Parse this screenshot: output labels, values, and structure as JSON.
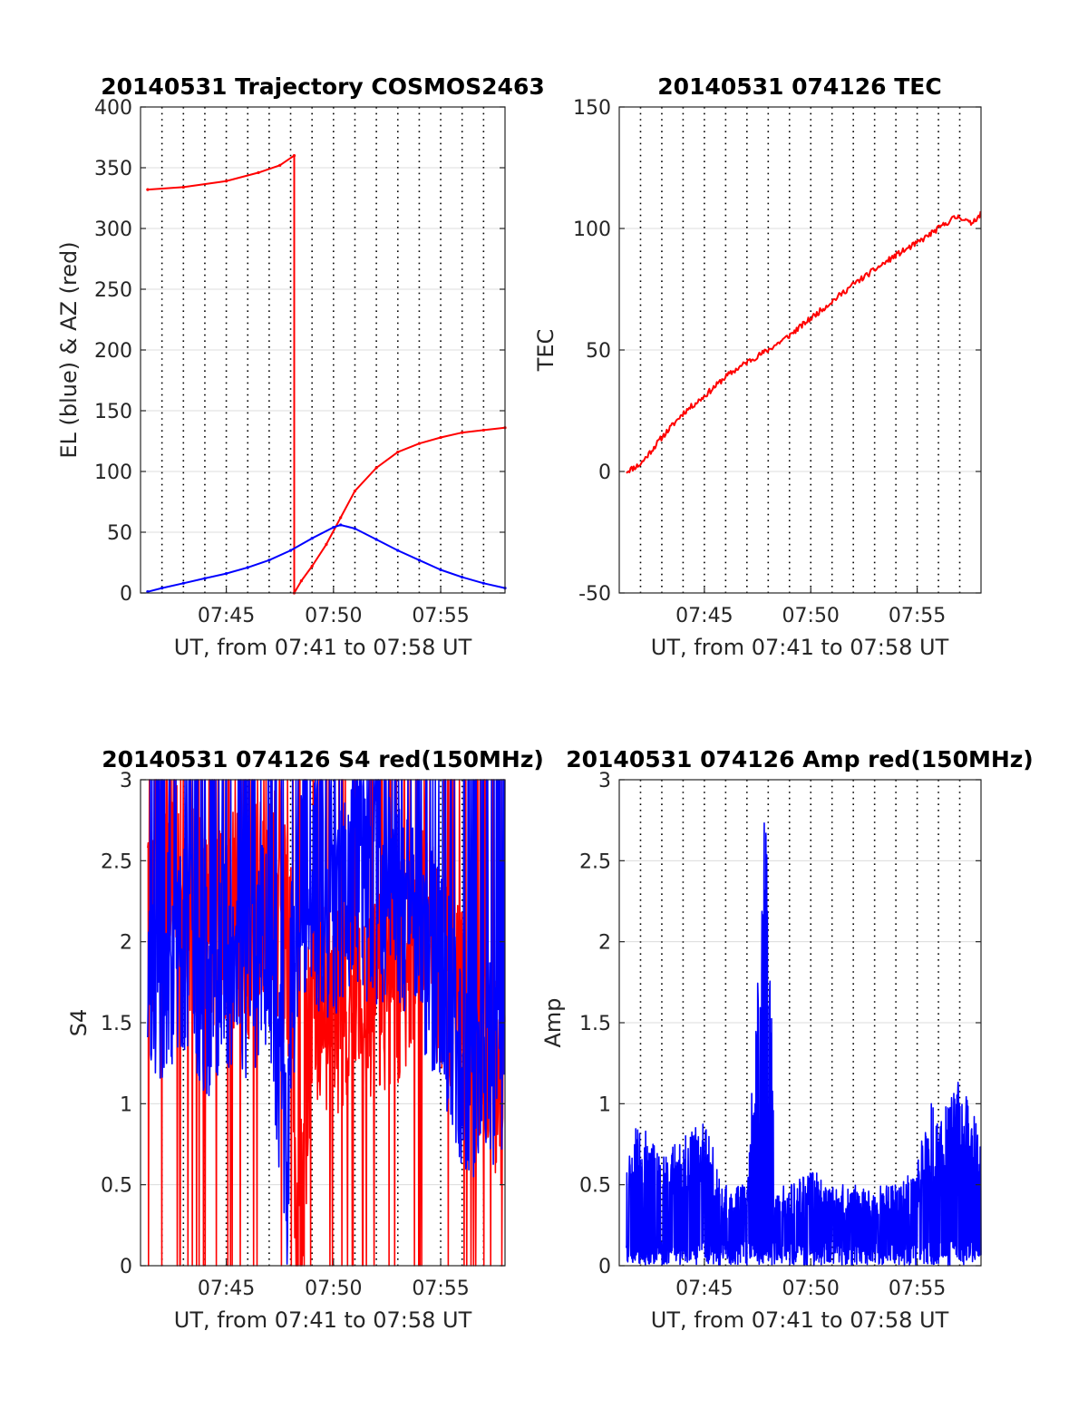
{
  "chart_data": [
    {
      "type": "line",
      "title": "20140531 Trajectory COSMOS2463",
      "xlabel": "UT, from 07:41 to 07:58 UT",
      "ylabel": "EL (blue) & AZ (red)",
      "xlim": [
        "07:41",
        "07:58"
      ],
      "ylim": [
        0,
        400
      ],
      "x_ticks": [
        "07:45",
        "07:50",
        "07:55"
      ],
      "y_ticks": [
        "0",
        "50",
        "100",
        "150",
        "200",
        "250",
        "300",
        "350",
        "400"
      ],
      "grid": true,
      "series": [
        {
          "color": "#ff0000",
          "x": [
            "07:41:20",
            "07:43:00",
            "07:45:00",
            "07:46:30",
            "07:47:30",
            "07:48:10",
            "07:48:10",
            "07:48:30",
            "07:49:00",
            "07:49:40",
            "07:50:20",
            "07:51:00",
            "07:52:00",
            "07:53:00",
            "07:54:00",
            "07:55:00",
            "07:56:00",
            "07:57:00",
            "07:58:00"
          ],
          "values": [
            332,
            334,
            339,
            346,
            352,
            360,
            0,
            10,
            22,
            40,
            62,
            84,
            103,
            116,
            123,
            128,
            132,
            134,
            136
          ]
        },
        {
          "color": "#0000ff",
          "x": [
            "07:41:20",
            "07:42:00",
            "07:43:00",
            "07:44:00",
            "07:45:00",
            "07:46:00",
            "07:47:00",
            "07:48:00",
            "07:49:00",
            "07:50:00",
            "07:50:20",
            "07:51:00",
            "07:52:00",
            "07:53:00",
            "07:54:00",
            "07:55:00",
            "07:56:00",
            "07:57:00",
            "07:58:00"
          ],
          "values": [
            1,
            4,
            8,
            12,
            16,
            21,
            27,
            35,
            45,
            54,
            56,
            53,
            44,
            35,
            27,
            19,
            13,
            8,
            4
          ]
        }
      ]
    },
    {
      "type": "line",
      "title": "20140531 074126 TEC",
      "xlabel": "UT, from 07:41 to 07:58 UT",
      "ylabel": "TEC",
      "xlim": [
        "07:41",
        "07:58"
      ],
      "ylim": [
        -50,
        150
      ],
      "x_ticks": [
        "07:45",
        "07:50",
        "07:55"
      ],
      "y_ticks": [
        "-50",
        "0",
        "50",
        "100",
        "150"
      ],
      "grid": true,
      "series": [
        {
          "color": "#ff0000",
          "x": [
            "07:41:20",
            "07:42:00",
            "07:43:00",
            "07:44:00",
            "07:45:00",
            "07:46:00",
            "07:47:00",
            "07:48:00",
            "07:49:00",
            "07:50:00",
            "07:51:00",
            "07:52:00",
            "07:53:00",
            "07:54:00",
            "07:55:00",
            "07:56:00",
            "07:56:40",
            "07:57:00",
            "07:57:30",
            "07:58:00"
          ],
          "values": [
            0,
            3,
            14,
            24,
            31,
            39,
            45,
            50,
            56,
            63,
            70,
            77,
            83,
            89,
            94,
            100,
            104,
            105,
            102,
            106
          ]
        }
      ]
    },
    {
      "type": "line",
      "title": "20140531 074126 S4 red(150MHz)",
      "xlabel": "UT, from 07:41 to 07:58 UT",
      "ylabel": "S4",
      "xlim": [
        "07:41",
        "07:58"
      ],
      "ylim": [
        0,
        3
      ],
      "x_ticks": [
        "07:45",
        "07:50",
        "07:55"
      ],
      "y_ticks": [
        "0",
        "0.5",
        "1",
        "1.5",
        "2",
        "2.5",
        "3"
      ],
      "grid": true,
      "series": [
        {
          "color": "#ff0000",
          "x": [
            "07:41:20",
            "07:42:00",
            "07:43:00",
            "07:44:00",
            "07:45:00",
            "07:46:00",
            "07:47:00",
            "07:48:00",
            "07:48:20",
            "07:49:00",
            "07:50:00",
            "07:51:00",
            "07:52:00",
            "07:53:00",
            "07:54:00",
            "07:55:00",
            "07:56:00",
            "07:57:00",
            "07:58:00"
          ],
          "values": [
            2.0,
            2.4,
            2.3,
            2.1,
            2.2,
            2.0,
            2.4,
            1.9,
            0.0,
            1.7,
            1.6,
            1.8,
            1.7,
            1.8,
            2.1,
            1.9,
            1.6,
            1.2,
            1.2
          ]
        },
        {
          "color": "#0000ff",
          "x": [
            "07:41:20",
            "07:42:00",
            "07:43:00",
            "07:44:00",
            "07:45:00",
            "07:46:00",
            "07:47:00",
            "07:47:50",
            "07:48:00",
            "07:48:30",
            "07:49:00",
            "07:50:00",
            "07:51:00",
            "07:52:00",
            "07:53:00",
            "07:54:00",
            "07:55:00",
            "07:56:00",
            "07:57:00",
            "07:58:00"
          ],
          "values": [
            1.6,
            1.8,
            2.0,
            1.7,
            1.9,
            1.8,
            2.1,
            0.5,
            1.6,
            2.4,
            2.3,
            2.2,
            2.4,
            2.2,
            2.3,
            2.0,
            1.8,
            1.3,
            1.2,
            1.3
          ]
        }
      ]
    },
    {
      "type": "line",
      "title": "20140531 074126 Amp red(150MHz)",
      "xlabel": "UT, from 07:41 to 07:58 UT",
      "ylabel": "Amp",
      "xlim": [
        "07:41",
        "07:58"
      ],
      "ylim": [
        0,
        3
      ],
      "x_ticks": [
        "07:45",
        "07:50",
        "07:55"
      ],
      "y_ticks": [
        "0",
        "0.5",
        "1",
        "1.5",
        "2",
        "2.5",
        "3"
      ],
      "grid": true,
      "series": [
        {
          "color": "#0000ff",
          "x": [
            "07:41:20",
            "07:42:00",
            "07:43:00",
            "07:44:00",
            "07:45:00",
            "07:46:00",
            "07:47:00",
            "07:47:50",
            "07:48:00",
            "07:48:20",
            "07:49:00",
            "07:50:00",
            "07:51:00",
            "07:52:00",
            "07:53:00",
            "07:54:00",
            "07:55:00",
            "07:55:30",
            "07:56:00",
            "07:57:00",
            "07:58:00"
          ],
          "values": [
            0.8,
            0.9,
            0.7,
            0.8,
            0.9,
            0.5,
            0.5,
            2.8,
            2.7,
            0.5,
            0.5,
            0.6,
            0.5,
            0.5,
            0.5,
            0.5,
            0.6,
            1.1,
            0.9,
            1.2,
            0.8
          ]
        }
      ]
    }
  ]
}
